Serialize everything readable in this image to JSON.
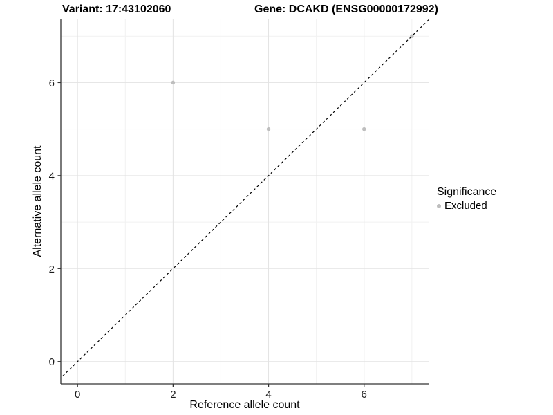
{
  "chart_data": {
    "type": "scatter",
    "title_left": "Variant: 17:43102060",
    "title_right": "Gene: DCAKD (ENSG00000172992)",
    "xlabel": "Reference allele count",
    "ylabel": "Alternative allele count",
    "x_ticks": [
      0,
      2,
      4,
      6
    ],
    "y_ticks": [
      0,
      2,
      4,
      6
    ],
    "x_minor_ticks": [
      1,
      3,
      5,
      7
    ],
    "y_minor_ticks": [
      1,
      3,
      5,
      7
    ],
    "xlim": [
      -0.35,
      7.35
    ],
    "ylim": [
      -0.48,
      7.36
    ],
    "grid": "on",
    "series": [
      {
        "name": "Excluded",
        "color": "#bebebe",
        "points": [
          {
            "x": 2,
            "y": 6
          },
          {
            "x": 4,
            "y": 5
          },
          {
            "x": 6,
            "y": 5
          },
          {
            "x": 7,
            "y": 7
          }
        ]
      }
    ],
    "reference_line": {
      "type": "identity y=x",
      "style": "dashed",
      "color": "#000000"
    },
    "legend": {
      "title": "Significance",
      "position": "right",
      "items": [
        {
          "label": "Excluded",
          "color": "#bebebe"
        }
      ]
    }
  },
  "style_colors": {
    "background": "#ffffff",
    "grid_major": "#e3e3e3",
    "grid_minor": "#f1f1f1",
    "axis_line": "#333333",
    "tick_label": "#1a1a1a",
    "point": "#bebebe"
  }
}
